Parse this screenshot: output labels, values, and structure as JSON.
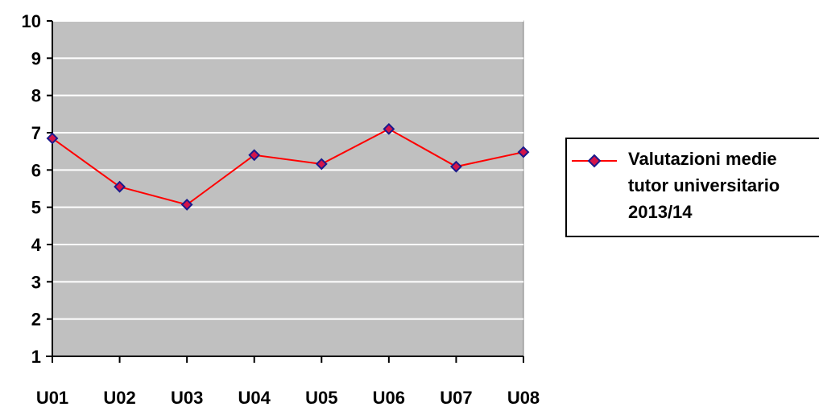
{
  "chart_data": {
    "type": "line",
    "categories": [
      "U01",
      "U02",
      "U03",
      "U04",
      "U05",
      "U06",
      "U07",
      "U08"
    ],
    "series": [
      {
        "name": "Valutazioni medie tutor universitario 2013/14",
        "name_lines": [
          "Valutazioni medie",
          "tutor universitario",
          "2013/14"
        ],
        "values": [
          6.85,
          5.55,
          5.07,
          6.4,
          6.16,
          7.1,
          6.09,
          6.48
        ],
        "line_color": "#ff0000",
        "marker_fill": "#d4144a",
        "marker_edge": "#1a1a8c"
      }
    ],
    "ylim": [
      1,
      10
    ],
    "yticks": [
      1,
      2,
      3,
      4,
      5,
      6,
      7,
      8,
      9,
      10
    ],
    "grid": true,
    "plot_background": "#c0c0c0",
    "gridline_color": "#ffffff",
    "legend_position": "right",
    "title": "",
    "xlabel": "",
    "ylabel": ""
  }
}
